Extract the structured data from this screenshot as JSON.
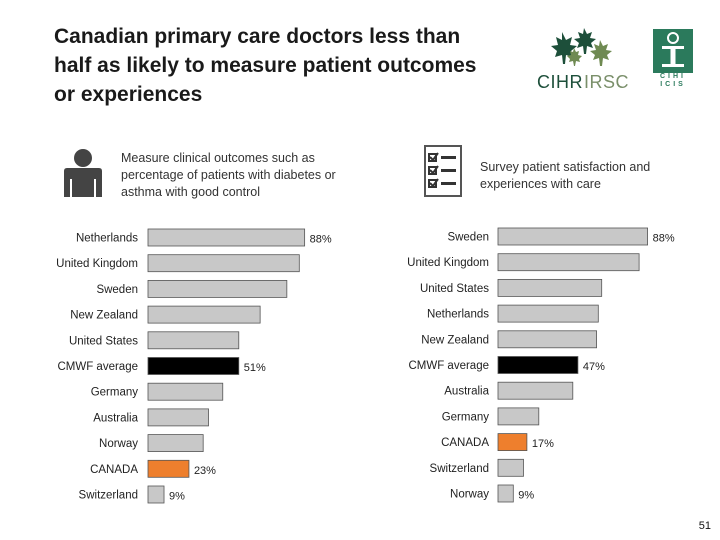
{
  "slide": {
    "title_lines": [
      "Canadian primary care doctors less than",
      "half as likely to measure patient outcomes",
      "or experiences"
    ],
    "page_number": "51"
  },
  "logos": {
    "cihr": {
      "main": "CIHR",
      "secondary": "IRSC"
    },
    "ihi": {
      "letters_top": "CIHI",
      "letters_bottom": "ICIS"
    }
  },
  "icons": {
    "left": "person-icon",
    "right": "checklist-icon"
  },
  "colors": {
    "default_bar": "#c8c8c8",
    "average_bar": "#000000",
    "canada_bar": "#ee7f2d",
    "bar_outline": "#555555"
  },
  "chart_data": [
    {
      "type": "bar",
      "orientation": "horizontal",
      "title": "Measure clinical outcomes such as percentage of patients with diabetes or asthma with good control",
      "xlim": [
        0,
        100
      ],
      "categories": [
        "Netherlands",
        "United Kingdom",
        "Sweden",
        "New Zealand",
        "United States",
        "CMWF average",
        "Germany",
        "Australia",
        "Norway",
        "CANADA",
        "Switzerland"
      ],
      "values": [
        88,
        85,
        78,
        63,
        51,
        51,
        42,
        34,
        31,
        23,
        9
      ],
      "value_labels": [
        "88%",
        "",
        "",
        "",
        "",
        "51%",
        "",
        "",
        "",
        "23%",
        "9%"
      ],
      "highlight": {
        "CMWF average": "average",
        "CANADA": "canada"
      }
    },
    {
      "type": "bar",
      "orientation": "horizontal",
      "title": "Survey patient satisfaction and experiences with care",
      "xlim": [
        0,
        100
      ],
      "categories": [
        "Sweden",
        "United Kingdom",
        "United States",
        "Netherlands",
        "New Zealand",
        "CMWF average",
        "Australia",
        "Germany",
        "CANADA",
        "Switzerland",
        "Norway"
      ],
      "values": [
        88,
        83,
        61,
        59,
        58,
        47,
        44,
        24,
        17,
        15,
        9
      ],
      "value_labels": [
        "88%",
        "",
        "",
        "",
        "",
        "47%",
        "",
        "",
        "17%",
        "",
        "9%"
      ],
      "highlight": {
        "CMWF average": "average",
        "CANADA": "canada"
      }
    }
  ]
}
